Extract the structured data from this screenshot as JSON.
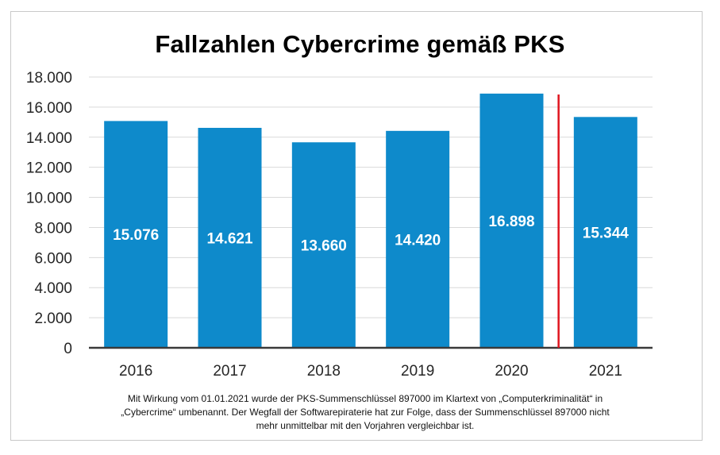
{
  "chart_data": {
    "type": "bar",
    "title": "Fallzahlen Cybercrime gemäß PKS",
    "categories": [
      "2016",
      "2017",
      "2018",
      "2019",
      "2020",
      "2021"
    ],
    "values": [
      15076,
      14621,
      13660,
      14420,
      16898,
      15344
    ],
    "value_labels": [
      "15.076",
      "14.621",
      "13.660",
      "14.420",
      "16.898",
      "15.344"
    ],
    "y_ticks": [
      "0",
      "2.000",
      "4.000",
      "6.000",
      "8.000",
      "10.000",
      "12.000",
      "14.000",
      "16.000",
      "18.000"
    ],
    "ylim": [
      0,
      18000
    ],
    "xlabel": "",
    "ylabel": "",
    "grid": true,
    "bar_color": "#0e8acb",
    "divider_color": "#e0151f",
    "divider_between": [
      "2020",
      "2021"
    ]
  },
  "footnote": {
    "line1": "Mit Wirkung vom 01.01.2021 wurde der PKS-Summenschlüssel 897000 im Klartext von „Computerkriminalität“ in",
    "line2": "„Cybercrime“ umbenannt. Der Wegfall der Softwarepiraterie hat zur Folge, dass der Summenschlüssel 897000 nicht",
    "line3": "mehr unmittelbar mit den Vorjahren vergleichbar ist."
  }
}
